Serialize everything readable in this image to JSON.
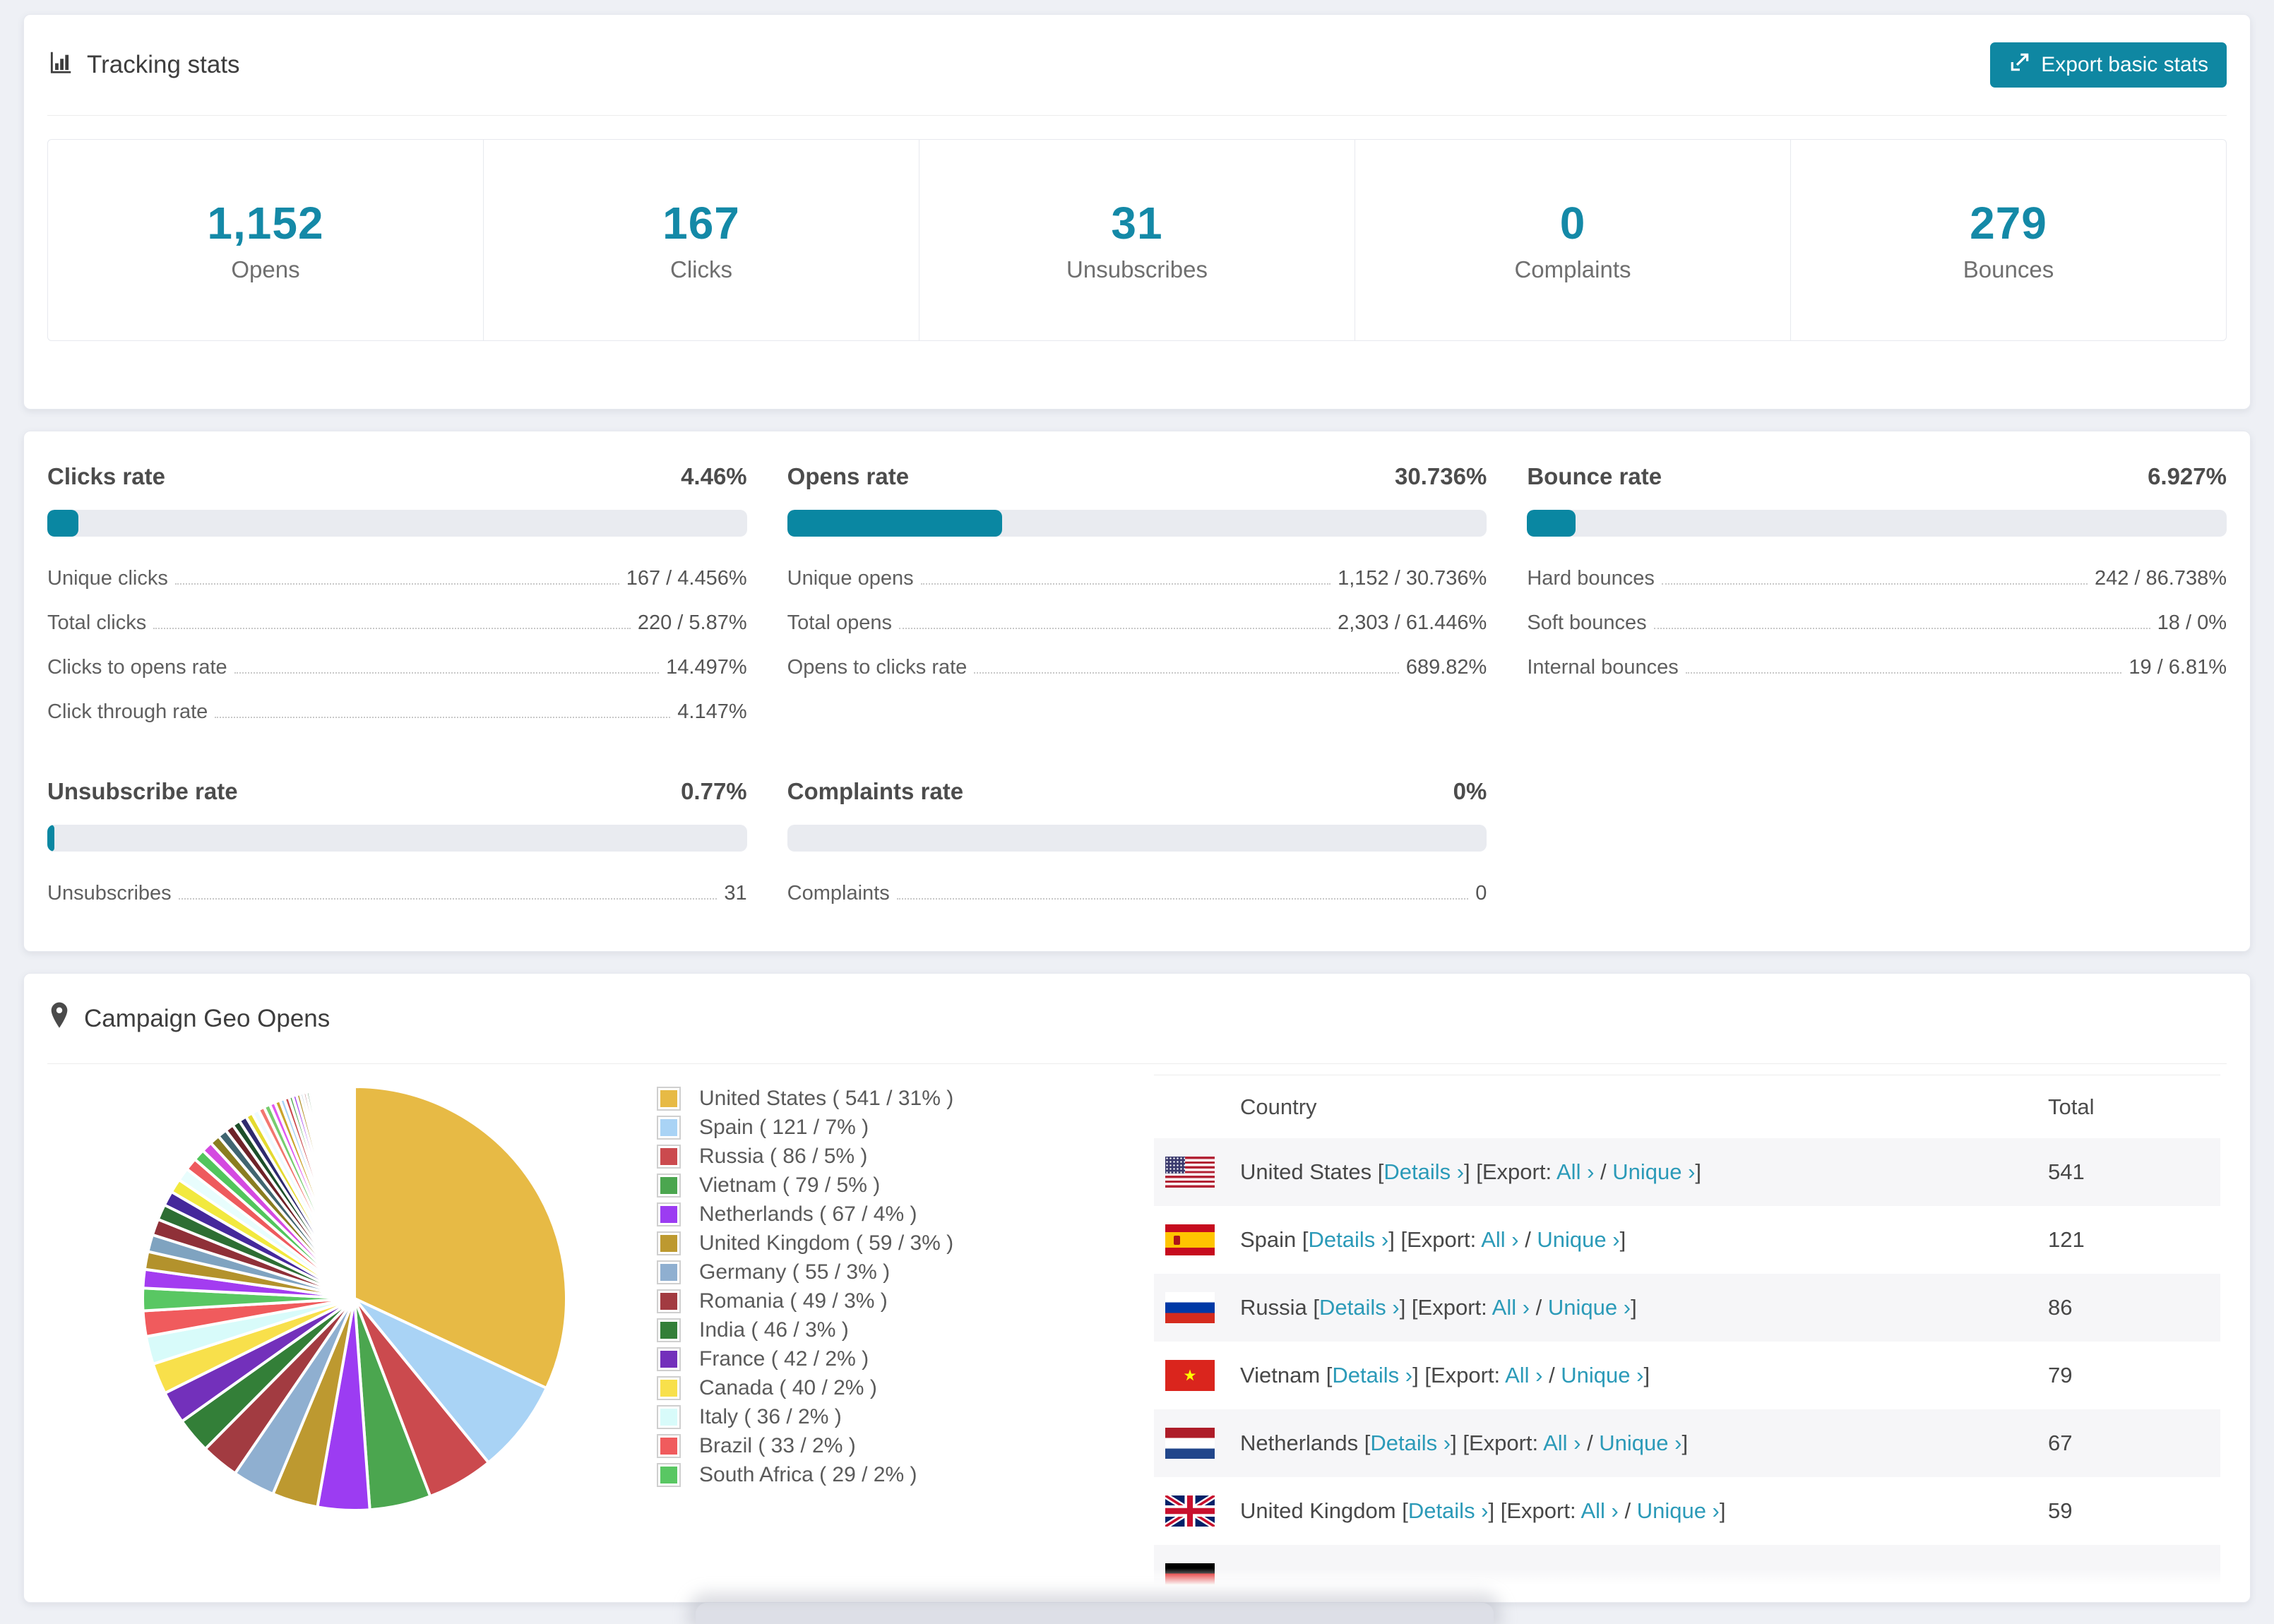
{
  "colors": {
    "accent": "#1489a7",
    "bar_fill": "#0a87a2",
    "button_bg": "#0f87a2",
    "link": "#2b9ab8",
    "page_bg": "#eef0f5"
  },
  "icons": [
    "bar-chart-icon",
    "export-icon",
    "map-pin-icon"
  ],
  "tracking": {
    "title": "Tracking stats",
    "export_button": "Export basic stats",
    "stats": [
      {
        "value": "1,152",
        "label": "Opens"
      },
      {
        "value": "167",
        "label": "Clicks"
      },
      {
        "value": "31",
        "label": "Unsubscribes"
      },
      {
        "value": "0",
        "label": "Complaints"
      },
      {
        "value": "279",
        "label": "Bounces"
      }
    ]
  },
  "rates": [
    {
      "title": "Clicks rate",
      "value": "4.46%",
      "percent": 4.46,
      "rows": [
        {
          "label": "Unique clicks",
          "value": "167 / 4.456%"
        },
        {
          "label": "Total clicks",
          "value": "220 / 5.87%"
        },
        {
          "label": "Clicks to opens rate",
          "value": "14.497%"
        },
        {
          "label": "Click through rate",
          "value": "4.147%"
        }
      ]
    },
    {
      "title": "Opens rate",
      "value": "30.736%",
      "percent": 30.736,
      "rows": [
        {
          "label": "Unique opens",
          "value": "1,152 / 30.736%"
        },
        {
          "label": "Total opens",
          "value": "2,303 / 61.446%"
        },
        {
          "label": "Opens to clicks rate",
          "value": "689.82%"
        }
      ]
    },
    {
      "title": "Bounce rate",
      "value": "6.927%",
      "percent": 6.927,
      "rows": [
        {
          "label": "Hard bounces",
          "value": "242 / 86.738%"
        },
        {
          "label": "Soft bounces",
          "value": "18 / 0%"
        },
        {
          "label": "Internal bounces",
          "value": "19 / 6.81%"
        }
      ]
    },
    {
      "title": "Unsubscribe rate",
      "value": "0.77%",
      "percent": 0.77,
      "rows": [
        {
          "label": "Unsubscribes",
          "value": "31"
        }
      ]
    },
    {
      "title": "Complaints rate",
      "value": "0%",
      "percent": 0,
      "rows": [
        {
          "label": "Complaints",
          "value": "0"
        }
      ]
    }
  ],
  "geo": {
    "title": "Campaign Geo Opens",
    "table": {
      "columns": [
        "Country",
        "Total"
      ],
      "links": {
        "details": "Details ›",
        "export_prefix": "Export:",
        "all": "All ›",
        "unique": "Unique ›"
      },
      "rows": [
        {
          "country": "United States",
          "total": "541",
          "flag": "us",
          "partial": false
        },
        {
          "country": "Spain",
          "total": "121",
          "flag": "es",
          "partial": false
        },
        {
          "country": "Russia",
          "total": "86",
          "flag": "ru",
          "partial": false
        },
        {
          "country": "Vietnam",
          "total": "79",
          "flag": "vn",
          "partial": false
        },
        {
          "country": "Netherlands",
          "total": "67",
          "flag": "nl",
          "partial": false
        },
        {
          "country": "United Kingdom",
          "total": "59",
          "flag": "gb",
          "partial": false
        },
        {
          "country": "Germany",
          "total": "",
          "flag": "de",
          "partial": true
        }
      ]
    }
  },
  "chart_data": {
    "type": "pie",
    "title": "Campaign Geo Opens",
    "legend_position": "right",
    "start_angle_deg": -90,
    "direction": "clockwise",
    "slices": [
      {
        "label": "United States",
        "value": 541,
        "pct": "31%",
        "color": "#e7ba45"
      },
      {
        "label": "Spain",
        "value": 121,
        "pct": "7%",
        "color": "#a9d3f5"
      },
      {
        "label": "Russia",
        "value": 86,
        "pct": "5%",
        "color": "#cb4a4e"
      },
      {
        "label": "Vietnam",
        "value": 79,
        "pct": "5%",
        "color": "#4ba64f"
      },
      {
        "label": "Netherlands",
        "value": 67,
        "pct": "4%",
        "color": "#9c3cf2"
      },
      {
        "label": "United Kingdom",
        "value": 59,
        "pct": "3%",
        "color": "#bd9930"
      },
      {
        "label": "Germany",
        "value": 55,
        "pct": "3%",
        "color": "#8fafd0"
      },
      {
        "label": "Romania",
        "value": 49,
        "pct": "3%",
        "color": "#a23b41"
      },
      {
        "label": "India",
        "value": 46,
        "pct": "3%",
        "color": "#337f38"
      },
      {
        "label": "France",
        "value": 42,
        "pct": "2%",
        "color": "#7330bb"
      },
      {
        "label": "Canada",
        "value": 40,
        "pct": "2%",
        "color": "#f8e04b"
      },
      {
        "label": "Italy",
        "value": 36,
        "pct": "2%",
        "color": "#d8fbfa"
      },
      {
        "label": "Brazil",
        "value": 33,
        "pct": "2%",
        "color": "#f05b5d"
      },
      {
        "label": "South Africa",
        "value": 29,
        "pct": "2%",
        "color": "#59c763"
      }
    ],
    "unlabeled_small_slices_approx": {
      "values": [
        24,
        23,
        22,
        21,
        20,
        19,
        18,
        17,
        16,
        15,
        14,
        13,
        12,
        11,
        10,
        10,
        9,
        9,
        8,
        8,
        7,
        7,
        6,
        6,
        5,
        5,
        5,
        4,
        4,
        4,
        3,
        3,
        3,
        3,
        3,
        2,
        2,
        2,
        2,
        2,
        2,
        2,
        2,
        1,
        1,
        1,
        1,
        1,
        1,
        1,
        1,
        1,
        1,
        1,
        1,
        1,
        1,
        1,
        1,
        1,
        1,
        1,
        1,
        1,
        1,
        1,
        1,
        1,
        1,
        1
      ],
      "palette": [
        "#a33cf0",
        "#b3922c",
        "#7fa3c0",
        "#8f3038",
        "#2d6e33",
        "#45289b",
        "#f2e93e",
        "#e8fdfd",
        "#ee5a5e",
        "#52c55c",
        "#d44ae0",
        "#8a7d20",
        "#406570",
        "#6e2228",
        "#1e4f2a",
        "#2f2a6e",
        "#e4da2f",
        "#eefaff",
        "#f2766f",
        "#77cc6e",
        "#e058f0",
        "#caa42c",
        "#a9d3f5",
        "#cb4a4e",
        "#4ba64f"
      ]
    }
  }
}
